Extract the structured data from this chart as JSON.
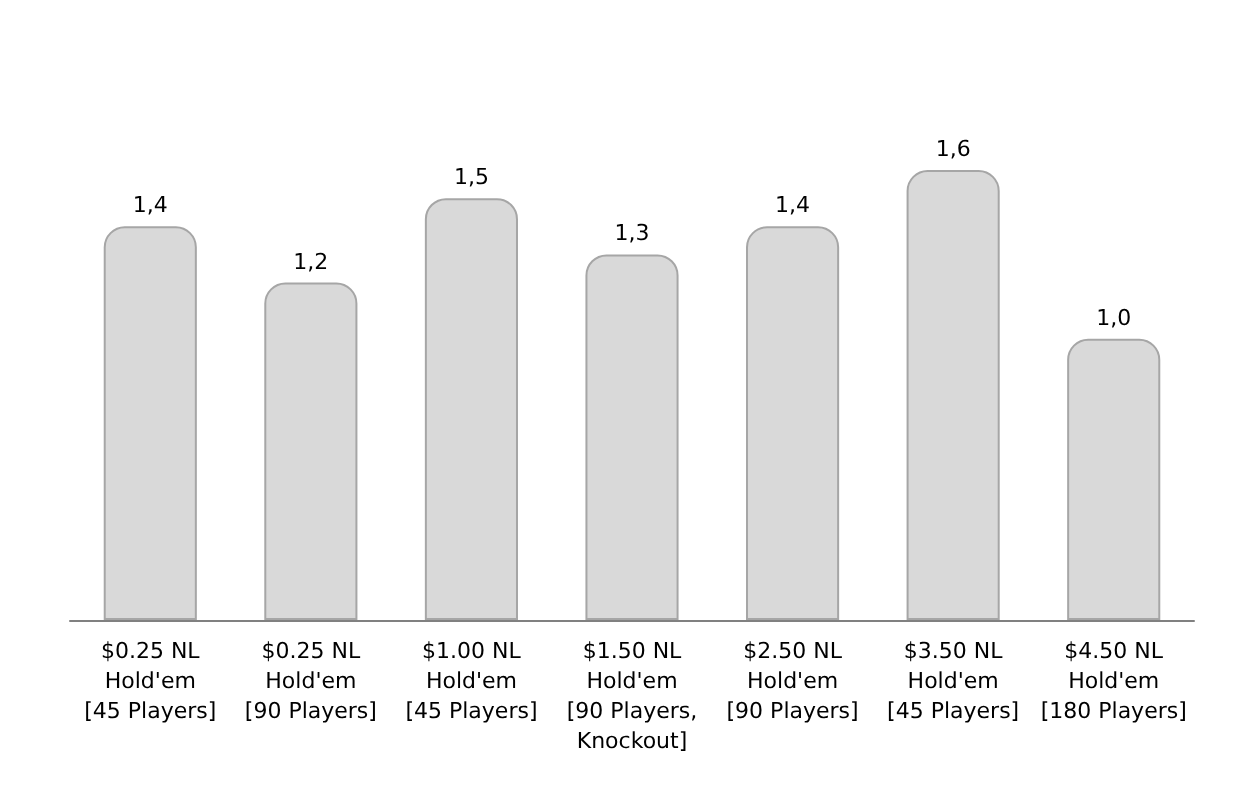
{
  "chart_data": {
    "type": "bar",
    "tick_labels": "x",
    "categories": [
      "$0.25 NL\nHold'em\n[45 Players]",
      "$0.25 NL\nHold'em\n[90 Players]",
      "$1.00 NL\nHold'em\n[45 Players]",
      "$1.50 NL\nHold'em\n[90 Players,\nKnockout]",
      "$2.50 NL\nHold'em\n[90 Players]",
      "$3.50 NL\nHold'em\n[45 Players]",
      "$4.50 NL\nHold'em\n[180 Players]"
    ],
    "values": [
      1.4,
      1.2,
      1.5,
      1.3,
      1.4,
      1.6,
      1.0
    ],
    "value_labels": [
      "1,4",
      "1,2",
      "1,5",
      "1,3",
      "1,4",
      "1,6",
      "1,0"
    ],
    "color": "#d9d9d9"
  }
}
